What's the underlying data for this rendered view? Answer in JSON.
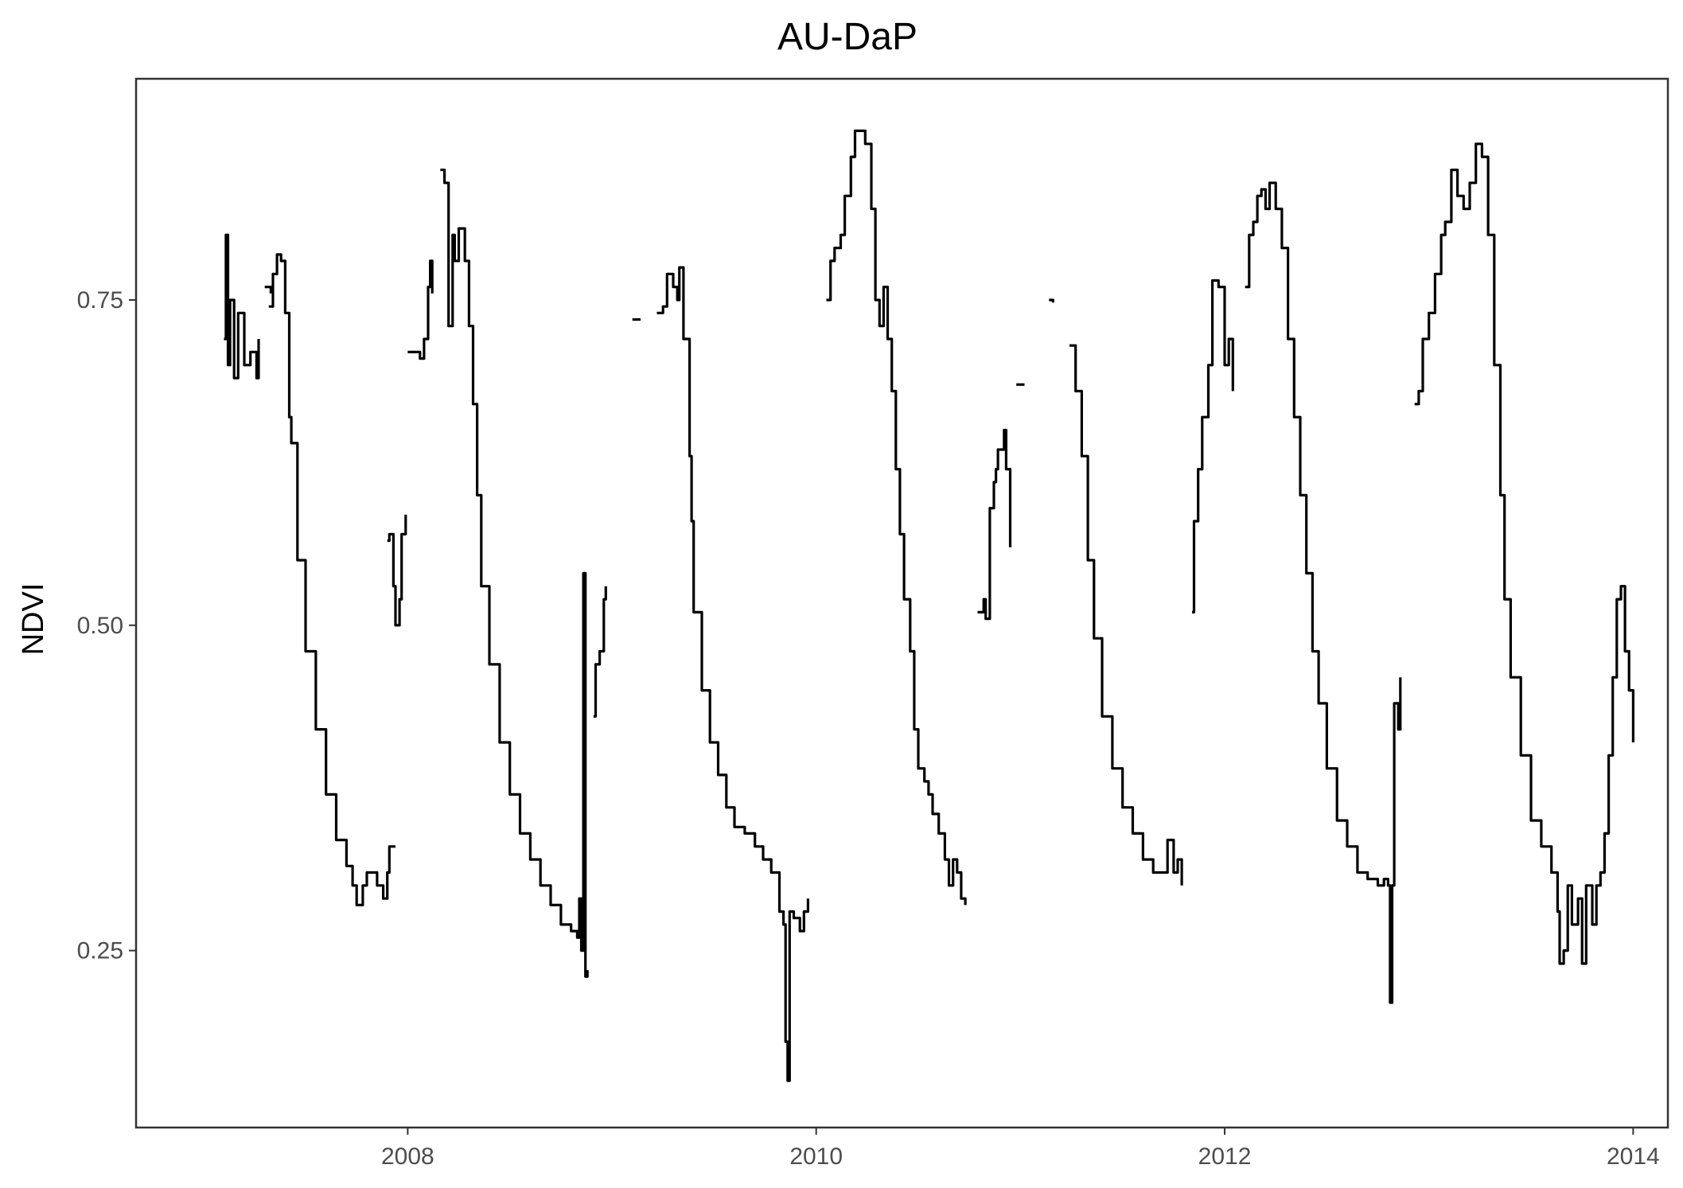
{
  "chart_data": {
    "type": "line",
    "title": "AU-DaP",
    "xlabel": "",
    "ylabel": "NDVI",
    "xlim": [
      2006.67,
      2014.17
    ],
    "ylim": [
      0.114,
      0.92
    ],
    "xticks": [
      2008,
      2010,
      2012,
      2014
    ],
    "xtick_labels": [
      "2008",
      "2010",
      "2012",
      "2014"
    ],
    "yticks": [
      0.25,
      0.5,
      0.75
    ],
    "ytick_labels": [
      "0.25",
      "0.50",
      "0.75"
    ],
    "grid": false,
    "legend": "none",
    "series": [
      {
        "segments": [
          [
            [
              2007.1,
              0.72
            ],
            [
              2007.11,
              0.8
            ],
            [
              2007.12,
              0.7
            ],
            [
              2007.13,
              0.75
            ],
            [
              2007.15,
              0.69
            ],
            [
              2007.17,
              0.74
            ],
            [
              2007.2,
              0.7
            ],
            [
              2007.23,
              0.71
            ],
            [
              2007.26,
              0.69
            ],
            [
              2007.27,
              0.72
            ]
          ],
          [
            [
              2007.3,
              0.76
            ],
            [
              2007.33,
              0.755
            ]
          ],
          [
            [
              2007.32,
              0.745
            ],
            [
              2007.34,
              0.77
            ],
            [
              2007.36,
              0.785
            ],
            [
              2007.38,
              0.78
            ],
            [
              2007.4,
              0.74
            ],
            [
              2007.42,
              0.66
            ],
            [
              2007.43,
              0.64
            ],
            [
              2007.46,
              0.55
            ],
            [
              2007.5,
              0.48
            ],
            [
              2007.55,
              0.42
            ],
            [
              2007.6,
              0.37
            ],
            [
              2007.65,
              0.335
            ],
            [
              2007.7,
              0.315
            ],
            [
              2007.73,
              0.3
            ],
            [
              2007.75,
              0.285
            ],
            [
              2007.78,
              0.3
            ],
            [
              2007.8,
              0.31
            ],
            [
              2007.85,
              0.3
            ],
            [
              2007.88,
              0.29
            ],
            [
              2007.9,
              0.31
            ],
            [
              2007.91,
              0.33
            ],
            [
              2007.94,
              0.33
            ]
          ]
        ]
      }
    ],
    "series_data": [
      [
        [
          2007.1,
          0.72
        ],
        [
          2007.11,
          0.8
        ],
        [
          2007.12,
          0.7
        ],
        [
          2007.13,
          0.75
        ],
        [
          2007.15,
          0.69
        ],
        [
          2007.17,
          0.74
        ],
        [
          2007.2,
          0.7
        ],
        [
          2007.23,
          0.71
        ],
        [
          2007.26,
          0.69
        ],
        [
          2007.27,
          0.72
        ]
      ],
      [
        [
          2007.3,
          0.76
        ],
        [
          2007.33,
          0.755
        ]
      ],
      [
        [
          2007.32,
          0.745
        ],
        [
          2007.34,
          0.77
        ],
        [
          2007.36,
          0.785
        ],
        [
          2007.38,
          0.78
        ],
        [
          2007.4,
          0.74
        ],
        [
          2007.42,
          0.66
        ],
        [
          2007.43,
          0.64
        ],
        [
          2007.46,
          0.55
        ],
        [
          2007.5,
          0.48
        ],
        [
          2007.55,
          0.42
        ],
        [
          2007.6,
          0.37
        ],
        [
          2007.65,
          0.335
        ],
        [
          2007.7,
          0.315
        ],
        [
          2007.73,
          0.3
        ],
        [
          2007.75,
          0.285
        ],
        [
          2007.78,
          0.3
        ],
        [
          2007.8,
          0.31
        ],
        [
          2007.85,
          0.3
        ],
        [
          2007.88,
          0.29
        ],
        [
          2007.9,
          0.31
        ],
        [
          2007.91,
          0.33
        ],
        [
          2007.94,
          0.33
        ]
      ],
      [
        [
          2007.9,
          0.565
        ],
        [
          2007.91,
          0.57
        ],
        [
          2007.93,
          0.53
        ],
        [
          2007.94,
          0.5
        ],
        [
          2007.96,
          0.52
        ],
        [
          2007.97,
          0.57
        ],
        [
          2007.99,
          0.585
        ]
      ],
      [
        [
          2008.0,
          0.71
        ],
        [
          2008.04,
          0.71
        ],
        [
          2008.06,
          0.705
        ],
        [
          2008.08,
          0.72
        ],
        [
          2008.1,
          0.76
        ],
        [
          2008.11,
          0.78
        ],
        [
          2008.12,
          0.755
        ]
      ],
      [
        [
          2008.16,
          0.85
        ],
        [
          2008.18,
          0.84
        ],
        [
          2008.2,
          0.73
        ],
        [
          2008.22,
          0.8
        ],
        [
          2008.23,
          0.78
        ],
        [
          2008.25,
          0.805
        ],
        [
          2008.28,
          0.78
        ],
        [
          2008.3,
          0.73
        ],
        [
          2008.32,
          0.67
        ],
        [
          2008.34,
          0.6
        ],
        [
          2008.36,
          0.53
        ],
        [
          2008.4,
          0.47
        ],
        [
          2008.45,
          0.41
        ],
        [
          2008.5,
          0.37
        ],
        [
          2008.55,
          0.34
        ],
        [
          2008.6,
          0.32
        ],
        [
          2008.65,
          0.3
        ],
        [
          2008.7,
          0.285
        ],
        [
          2008.75,
          0.27
        ],
        [
          2008.8,
          0.265
        ],
        [
          2008.83,
          0.26
        ],
        [
          2008.84,
          0.29
        ],
        [
          2008.85,
          0.25
        ],
        [
          2008.86,
          0.54
        ],
        [
          2008.87,
          0.23
        ],
        [
          2008.88,
          0.235
        ]
      ],
      [
        [
          2008.91,
          0.43
        ],
        [
          2008.92,
          0.47
        ],
        [
          2008.94,
          0.48
        ],
        [
          2008.96,
          0.52
        ],
        [
          2008.97,
          0.53
        ]
      ],
      [
        [
          2009.1,
          0.735
        ],
        [
          2009.14,
          0.735
        ]
      ],
      [
        [
          2009.22,
          0.74
        ],
        [
          2009.25,
          0.745
        ],
        [
          2009.27,
          0.77
        ],
        [
          2009.3,
          0.76
        ],
        [
          2009.32,
          0.75
        ],
        [
          2009.33,
          0.775
        ],
        [
          2009.35,
          0.72
        ],
        [
          2009.38,
          0.63
        ],
        [
          2009.39,
          0.58
        ],
        [
          2009.4,
          0.51
        ],
        [
          2009.44,
          0.45
        ],
        [
          2009.48,
          0.41
        ],
        [
          2009.52,
          0.385
        ],
        [
          2009.56,
          0.36
        ],
        [
          2009.6,
          0.345
        ],
        [
          2009.65,
          0.34
        ],
        [
          2009.7,
          0.33
        ],
        [
          2009.74,
          0.32
        ],
        [
          2009.78,
          0.31
        ],
        [
          2009.82,
          0.28
        ],
        [
          2009.84,
          0.27
        ],
        [
          2009.85,
          0.18
        ],
        [
          2009.86,
          0.15
        ],
        [
          2009.87,
          0.28
        ],
        [
          2009.89,
          0.275
        ],
        [
          2009.92,
          0.265
        ],
        [
          2009.94,
          0.28
        ],
        [
          2009.96,
          0.29
        ]
      ],
      [
        [
          2010.05,
          0.75
        ],
        [
          2010.07,
          0.78
        ],
        [
          2010.09,
          0.79
        ],
        [
          2010.12,
          0.8
        ],
        [
          2010.14,
          0.83
        ],
        [
          2010.17,
          0.86
        ],
        [
          2010.19,
          0.88
        ],
        [
          2010.24,
          0.87
        ],
        [
          2010.27,
          0.82
        ],
        [
          2010.29,
          0.75
        ],
        [
          2010.31,
          0.73
        ],
        [
          2010.33,
          0.76
        ],
        [
          2010.35,
          0.72
        ],
        [
          2010.37,
          0.68
        ],
        [
          2010.39,
          0.62
        ],
        [
          2010.41,
          0.57
        ],
        [
          2010.43,
          0.52
        ],
        [
          2010.46,
          0.48
        ],
        [
          2010.48,
          0.42
        ],
        [
          2010.5,
          0.39
        ],
        [
          2010.53,
          0.38
        ],
        [
          2010.55,
          0.37
        ],
        [
          2010.57,
          0.355
        ],
        [
          2010.6,
          0.34
        ],
        [
          2010.63,
          0.32
        ],
        [
          2010.65,
          0.3
        ],
        [
          2010.67,
          0.32
        ],
        [
          2010.69,
          0.31
        ],
        [
          2010.71,
          0.29
        ],
        [
          2010.73,
          0.285
        ]
      ],
      [
        [
          2010.79,
          0.51
        ],
        [
          2010.82,
          0.52
        ],
        [
          2010.83,
          0.505
        ],
        [
          2010.85,
          0.59
        ],
        [
          2010.87,
          0.61
        ],
        [
          2010.88,
          0.62
        ],
        [
          2010.89,
          0.635
        ],
        [
          2010.92,
          0.65
        ],
        [
          2010.93,
          0.62
        ],
        [
          2010.95,
          0.56
        ]
      ],
      [
        [
          2010.98,
          0.685
        ],
        [
          2011.02,
          0.685
        ]
      ],
      [
        [
          2011.14,
          0.75
        ],
        [
          2011.16,
          0.748
        ]
      ],
      [
        [
          2011.24,
          0.715
        ],
        [
          2011.27,
          0.68
        ],
        [
          2011.3,
          0.63
        ],
        [
          2011.33,
          0.55
        ],
        [
          2011.36,
          0.49
        ],
        [
          2011.4,
          0.43
        ],
        [
          2011.45,
          0.39
        ],
        [
          2011.5,
          0.36
        ],
        [
          2011.55,
          0.34
        ],
        [
          2011.6,
          0.32
        ],
        [
          2011.65,
          0.31
        ],
        [
          2011.7,
          0.31
        ],
        [
          2011.72,
          0.335
        ],
        [
          2011.75,
          0.31
        ],
        [
          2011.77,
          0.32
        ],
        [
          2011.79,
          0.3
        ]
      ],
      [
        [
          2011.84,
          0.51
        ],
        [
          2011.85,
          0.58
        ],
        [
          2011.87,
          0.62
        ],
        [
          2011.89,
          0.66
        ],
        [
          2011.92,
          0.7
        ],
        [
          2011.94,
          0.765
        ],
        [
          2011.97,
          0.76
        ],
        [
          2012.0,
          0.7
        ],
        [
          2012.02,
          0.72
        ],
        [
          2012.04,
          0.68
        ]
      ],
      [
        [
          2012.1,
          0.76
        ],
        [
          2012.12,
          0.8
        ],
        [
          2012.14,
          0.81
        ],
        [
          2012.16,
          0.83
        ],
        [
          2012.18,
          0.835
        ],
        [
          2012.2,
          0.82
        ],
        [
          2012.22,
          0.84
        ],
        [
          2012.25,
          0.82
        ],
        [
          2012.28,
          0.79
        ],
        [
          2012.31,
          0.72
        ],
        [
          2012.34,
          0.66
        ],
        [
          2012.37,
          0.6
        ],
        [
          2012.4,
          0.54
        ],
        [
          2012.43,
          0.48
        ],
        [
          2012.46,
          0.44
        ],
        [
          2012.5,
          0.39
        ],
        [
          2012.55,
          0.35
        ],
        [
          2012.6,
          0.33
        ],
        [
          2012.65,
          0.31
        ],
        [
          2012.7,
          0.305
        ],
        [
          2012.75,
          0.3
        ],
        [
          2012.78,
          0.305
        ],
        [
          2012.8,
          0.3
        ],
        [
          2012.81,
          0.21
        ],
        [
          2012.82,
          0.3
        ],
        [
          2012.83,
          0.44
        ],
        [
          2012.85,
          0.42
        ],
        [
          2012.86,
          0.46
        ]
      ],
      [
        [
          2012.93,
          0.67
        ],
        [
          2012.95,
          0.68
        ],
        [
          2012.97,
          0.72
        ],
        [
          2013.0,
          0.74
        ],
        [
          2013.03,
          0.77
        ],
        [
          2013.06,
          0.8
        ],
        [
          2013.08,
          0.81
        ],
        [
          2013.11,
          0.85
        ],
        [
          2013.14,
          0.83
        ],
        [
          2013.17,
          0.82
        ],
        [
          2013.2,
          0.84
        ],
        [
          2013.23,
          0.87
        ],
        [
          2013.26,
          0.86
        ],
        [
          2013.29,
          0.8
        ],
        [
          2013.32,
          0.7
        ],
        [
          2013.35,
          0.6
        ],
        [
          2013.37,
          0.52
        ],
        [
          2013.4,
          0.46
        ],
        [
          2013.45,
          0.4
        ],
        [
          2013.5,
          0.35
        ],
        [
          2013.55,
          0.33
        ],
        [
          2013.6,
          0.31
        ],
        [
          2013.63,
          0.28
        ],
        [
          2013.64,
          0.24
        ],
        [
          2013.66,
          0.25
        ],
        [
          2013.68,
          0.3
        ],
        [
          2013.7,
          0.27
        ],
        [
          2013.73,
          0.29
        ],
        [
          2013.75,
          0.24
        ],
        [
          2013.77,
          0.3
        ],
        [
          2013.8,
          0.27
        ],
        [
          2013.82,
          0.3
        ],
        [
          2013.84,
          0.31
        ],
        [
          2013.86,
          0.34
        ],
        [
          2013.88,
          0.4
        ],
        [
          2013.9,
          0.46
        ],
        [
          2013.92,
          0.52
        ],
        [
          2013.94,
          0.53
        ],
        [
          2013.96,
          0.48
        ],
        [
          2013.98,
          0.45
        ],
        [
          2014.0,
          0.41
        ]
      ]
    ]
  }
}
